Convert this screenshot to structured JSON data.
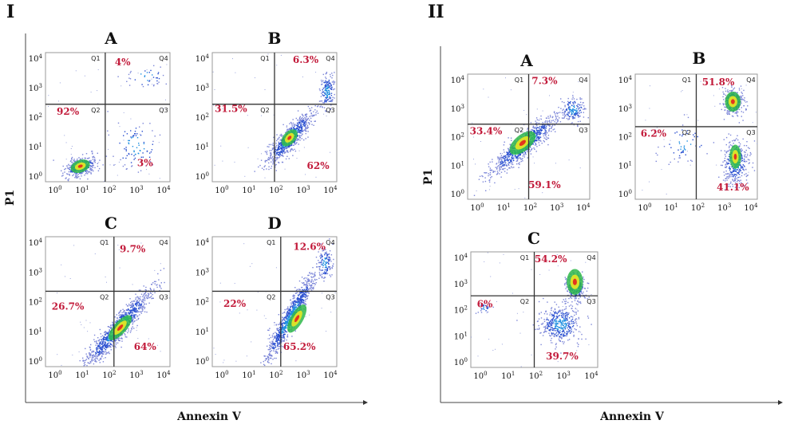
{
  "colors": {
    "axis": "#111111",
    "gate": "#333333",
    "pct": "#c21a3a",
    "frame": "#9a9a9a"
  },
  "axis": {
    "y_title": "P1",
    "x_title": "Annexin V"
  },
  "ticks": {
    "base": "10",
    "exponents": [
      "0",
      "1",
      "2",
      "3",
      "4"
    ]
  },
  "quadrant_names": [
    "Q1",
    "Q2",
    "Q3",
    "Q4"
  ],
  "sections": [
    {
      "label": "I",
      "ylabel": "P1",
      "xlabel": "Annexin V"
    },
    {
      "label": "II",
      "ylabel": "P1",
      "xlabel": "Annexin V"
    }
  ],
  "chart_data": [
    {
      "type": "scatter",
      "section": "I",
      "panel": "A",
      "quadrant_values": {
        "Q1": "",
        "Q2": "92%",
        "Q3": "3%",
        "Q4": "4%"
      },
      "xlim": [
        "10^0",
        "10^4"
      ],
      "ylim": [
        "10^0",
        "10^4"
      ],
      "log_scale": true
    },
    {
      "type": "scatter",
      "section": "I",
      "panel": "B",
      "quadrant_values": {
        "Q1": "",
        "Q2": "31.5%",
        "Q3": "62%",
        "Q4": "6.3%"
      },
      "xlim": [
        "10^0",
        "10^4"
      ],
      "ylim": [
        "10^0",
        "10^4"
      ],
      "log_scale": true
    },
    {
      "type": "scatter",
      "section": "I",
      "panel": "C",
      "quadrant_values": {
        "Q1": "",
        "Q2": "26.7%",
        "Q3": "64%",
        "Q4": "9.7%"
      },
      "xlim": [
        "10^0",
        "10^4"
      ],
      "ylim": [
        "10^0",
        "10^4"
      ],
      "log_scale": true
    },
    {
      "type": "scatter",
      "section": "I",
      "panel": "D",
      "quadrant_values": {
        "Q1": "",
        "Q2": "22%",
        "Q3": "65.2%",
        "Q4": "12.6%"
      },
      "xlim": [
        "10^0",
        "10^4"
      ],
      "ylim": [
        "10^0",
        "10^4"
      ],
      "log_scale": true
    },
    {
      "type": "scatter",
      "section": "II",
      "panel": "A",
      "quadrant_values": {
        "Q1": "",
        "Q2": "33.4%",
        "Q3": "59.1%",
        "Q4": "7.3%"
      },
      "xlim": [
        "10^0",
        "10^4"
      ],
      "ylim": [
        "10^0",
        "10^4"
      ],
      "log_scale": true
    },
    {
      "type": "scatter",
      "section": "II",
      "panel": "B",
      "quadrant_values": {
        "Q1": "",
        "Q2": "6.2%",
        "Q3": "41.1%",
        "Q4": "51.8%"
      },
      "xlim": [
        "10^0",
        "10^4"
      ],
      "ylim": [
        "10^0",
        "10^4"
      ],
      "log_scale": true
    },
    {
      "type": "scatter",
      "section": "II",
      "panel": "C",
      "quadrant_values": {
        "Q1": "",
        "Q2": "6%",
        "Q3": "39.7%",
        "Q4": "54.2%"
      },
      "xlim": [
        "10^0",
        "10^4"
      ],
      "ylim": [
        "10^0",
        "10^4"
      ],
      "log_scale": true
    }
  ]
}
